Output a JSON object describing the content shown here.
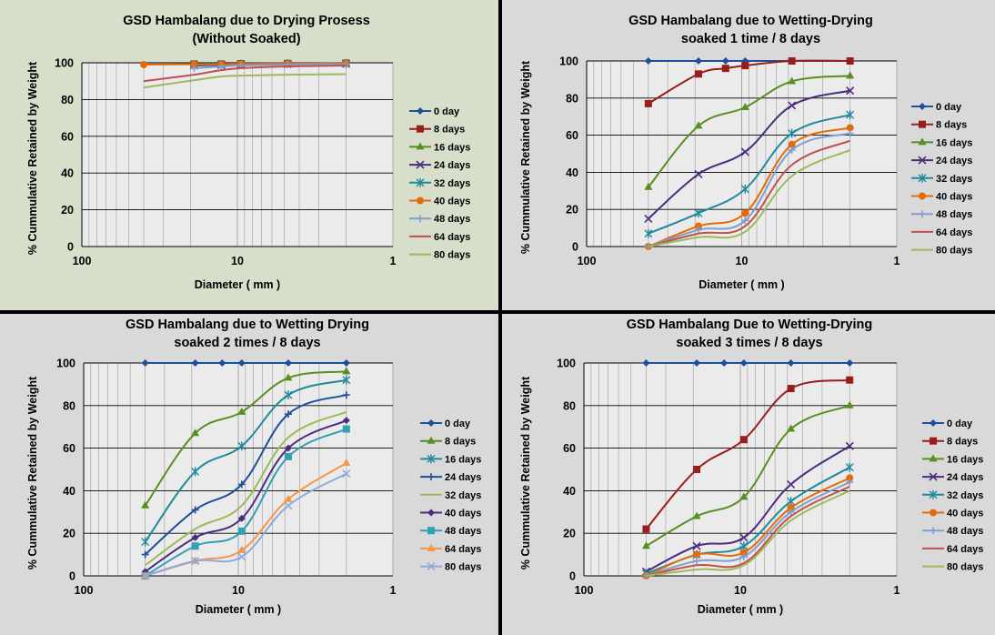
{
  "colors": {
    "page_bg": "#000000",
    "panel_bg_first": "#d7dec9",
    "panel_bg": "#d9d9d9",
    "plot_bg": "#ebebeb",
    "gridline": "#a6a6a6"
  },
  "chart_data": [
    {
      "type": "line",
      "title_lines": [
        "GSD Hambalang due to Drying  Prosess",
        "(Without Soaked)"
      ],
      "xlabel": "Diameter ( mm )",
      "ylabel": "% Cummulative Retained by Weight",
      "x_scale": "log",
      "x_reversed": true,
      "xlim": [
        100,
        1
      ],
      "ylim": [
        0,
        100
      ],
      "x_ticks": [
        "100",
        "10",
        "1"
      ],
      "y_ticks": [
        "0",
        "20",
        "40",
        "60",
        "80",
        "100"
      ],
      "legend_position": "right",
      "grid": true,
      "x": [
        40,
        19,
        12.7,
        9.5,
        4.75,
        2
      ],
      "series": [
        {
          "name": "0 day",
          "color": "#1f4e9c",
          "marker": "diamond",
          "values": [
            null,
            99.5,
            99.5,
            99.5,
            99.8,
            99.8
          ]
        },
        {
          "name": "8 days",
          "color": "#9b1c1c",
          "marker": "square",
          "values": [
            null,
            99.3,
            99.3,
            99.5,
            99.6,
            99.8
          ]
        },
        {
          "name": "16 days",
          "color": "#5a8f1f",
          "marker": "triangle",
          "values": [
            null,
            98.8,
            99.0,
            99.2,
            99.4,
            99.6
          ]
        },
        {
          "name": "24 days",
          "color": "#4b2c7f",
          "marker": "x",
          "values": [
            null,
            98.5,
            98.8,
            99.0,
            99.3,
            99.5
          ]
        },
        {
          "name": "32 days",
          "color": "#1f8a9b",
          "marker": "star",
          "values": [
            null,
            99.0,
            99.1,
            99.3,
            99.5,
            99.6
          ]
        },
        {
          "name": "40 days",
          "color": "#e36c09",
          "marker": "circle",
          "values": [
            99.0,
            99.2,
            99.2,
            99.4,
            99.5,
            99.6
          ]
        },
        {
          "name": "48 days",
          "color": "#7f9fcf",
          "marker": "plus",
          "values": [
            null,
            97.0,
            98.0,
            98.5,
            99.0,
            99.2
          ]
        },
        {
          "name": "64 days",
          "color": "#c0504d",
          "marker": "none",
          "values": [
            90.0,
            93.5,
            96.0,
            97.0,
            98.0,
            98.5
          ]
        },
        {
          "name": "80 days",
          "color": "#9bbb59",
          "marker": "none",
          "values": [
            86.5,
            90.5,
            92.5,
            93.0,
            93.5,
            93.8
          ]
        }
      ]
    },
    {
      "type": "line",
      "title_lines": [
        "GSD Hambalang due to Wetting-Drying",
        "soaked 1 time / 8 days"
      ],
      "xlabel": "Diameter ( mm )",
      "ylabel": "% Cummulative Retained by Weight",
      "x_scale": "log",
      "x_reversed": true,
      "xlim": [
        100,
        1
      ],
      "ylim": [
        0,
        100
      ],
      "x_ticks": [
        "100",
        "10",
        "1"
      ],
      "y_ticks": [
        "0",
        "20",
        "40",
        "60",
        "80",
        "100"
      ],
      "legend_position": "right",
      "grid": true,
      "x": [
        40,
        19,
        12.7,
        9.5,
        4.75,
        2
      ],
      "series": [
        {
          "name": "0 day",
          "color": "#1f4e9c",
          "marker": "diamond",
          "values": [
            100,
            100,
            100,
            100,
            100,
            100
          ]
        },
        {
          "name": "8 days",
          "color": "#9b1c1c",
          "marker": "square",
          "values": [
            77,
            93,
            96,
            97.5,
            100,
            100
          ]
        },
        {
          "name": "16 days",
          "color": "#5a8f1f",
          "marker": "triangle",
          "values": [
            32,
            65,
            null,
            75,
            89,
            92
          ]
        },
        {
          "name": "24 days",
          "color": "#4b2c7f",
          "marker": "x",
          "values": [
            15,
            39,
            null,
            51,
            76,
            84
          ]
        },
        {
          "name": "32 days",
          "color": "#1f8a9b",
          "marker": "star",
          "values": [
            7,
            18,
            null,
            31,
            61,
            71
          ]
        },
        {
          "name": "40 days",
          "color": "#e36c09",
          "marker": "circle",
          "values": [
            0,
            11,
            null,
            18,
            55,
            64
          ]
        },
        {
          "name": "48 days",
          "color": "#7f9fcf",
          "marker": "plus",
          "values": [
            0,
            9,
            null,
            14,
            52,
            61
          ]
        },
        {
          "name": "64 days",
          "color": "#c0504d",
          "marker": "none",
          "values": [
            0,
            7,
            null,
            11,
            44,
            57
          ]
        },
        {
          "name": "80 days",
          "color": "#9bbb59",
          "marker": "none",
          "values": [
            0,
            5,
            null,
            8,
            38,
            52
          ]
        }
      ]
    },
    {
      "type": "line",
      "title_lines": [
        "GSD Hambalang due to Wetting Drying",
        "soaked  2 times / 8 days"
      ],
      "xlabel": "Diameter ( mm )",
      "ylabel": "% Cummulative Retained by Weight",
      "x_scale": "log",
      "x_reversed": true,
      "xlim": [
        100,
        1
      ],
      "ylim": [
        0,
        100
      ],
      "x_ticks": [
        "100",
        "10",
        "1"
      ],
      "y_ticks": [
        "0",
        "20",
        "40",
        "60",
        "80",
        "100"
      ],
      "legend_position": "right",
      "grid": true,
      "x": [
        40,
        19,
        12.7,
        9.5,
        4.75,
        2
      ],
      "series": [
        {
          "name": "0 day",
          "color": "#1f4e9c",
          "marker": "diamond",
          "values": [
            100,
            100,
            100,
            100,
            100,
            100
          ]
        },
        {
          "name": "8 days",
          "color": "#5a8f1f",
          "marker": "triangle",
          "values": [
            33,
            67,
            null,
            77,
            93,
            96
          ]
        },
        {
          "name": "16 days",
          "color": "#1f8a9b",
          "marker": "star",
          "values": [
            16,
            49,
            null,
            61,
            85,
            92
          ]
        },
        {
          "name": "24 days",
          "color": "#1f4e9c",
          "marker": "plus",
          "values": [
            10,
            31,
            null,
            43,
            76,
            85
          ]
        },
        {
          "name": "32 days",
          "color": "#9bbb59",
          "marker": "none",
          "values": [
            5,
            22,
            null,
            33,
            65,
            77
          ]
        },
        {
          "name": "40 days",
          "color": "#4b2c7f",
          "marker": "diamond",
          "values": [
            2,
            18,
            null,
            27,
            60,
            73
          ]
        },
        {
          "name": "48 days",
          "color": "#31a0b4",
          "marker": "square",
          "values": [
            0,
            14,
            null,
            21,
            56,
            69
          ]
        },
        {
          "name": "64 days",
          "color": "#f79646",
          "marker": "triangle",
          "values": [
            0,
            7,
            null,
            12,
            36,
            53
          ]
        },
        {
          "name": "80 days",
          "color": "#8faadc",
          "marker": "x",
          "values": [
            0,
            7,
            null,
            9,
            33,
            48
          ]
        }
      ]
    },
    {
      "type": "line",
      "title_lines": [
        "GSD Hambalang  Due to Wetting-Drying",
        "soaked 3 times / 8 days"
      ],
      "xlabel": "Diameter ( mm )",
      "ylabel": "% Cummulative Retained by Weight",
      "x_scale": "log",
      "x_reversed": true,
      "xlim": [
        100,
        1
      ],
      "ylim": [
        0,
        100
      ],
      "x_ticks": [
        "100",
        "10",
        "1"
      ],
      "y_ticks": [
        "0",
        "20",
        "40",
        "60",
        "80",
        "100"
      ],
      "legend_position": "right",
      "grid": true,
      "x": [
        40,
        19,
        12.7,
        9.5,
        4.75,
        2
      ],
      "series": [
        {
          "name": "0 day",
          "color": "#1f4e9c",
          "marker": "diamond",
          "values": [
            100,
            100,
            100,
            100,
            100,
            100
          ]
        },
        {
          "name": "8 days",
          "color": "#9b1c1c",
          "marker": "square",
          "values": [
            22,
            50,
            null,
            64,
            88,
            92
          ]
        },
        {
          "name": "16 days",
          "color": "#5a8f1f",
          "marker": "triangle",
          "values": [
            14,
            28,
            null,
            37,
            69,
            80
          ]
        },
        {
          "name": "24 days",
          "color": "#4b2c7f",
          "marker": "x",
          "values": [
            2,
            14,
            null,
            18,
            43,
            61
          ]
        },
        {
          "name": "32 days",
          "color": "#1f8a9b",
          "marker": "star",
          "values": [
            1,
            10,
            null,
            14,
            35,
            51
          ]
        },
        {
          "name": "40 days",
          "color": "#e36c09",
          "marker": "circle",
          "values": [
            0,
            10,
            null,
            11,
            32,
            46
          ]
        },
        {
          "name": "48 days",
          "color": "#7f9fcf",
          "marker": "plus",
          "values": [
            0,
            7,
            null,
            9,
            30,
            44
          ]
        },
        {
          "name": "64 days",
          "color": "#c0504d",
          "marker": "none",
          "values": [
            0,
            5,
            null,
            6,
            28,
            42
          ]
        },
        {
          "name": "80 days",
          "color": "#9bbb59",
          "marker": "none",
          "values": [
            0,
            3,
            null,
            5,
            26,
            40
          ]
        }
      ]
    }
  ]
}
